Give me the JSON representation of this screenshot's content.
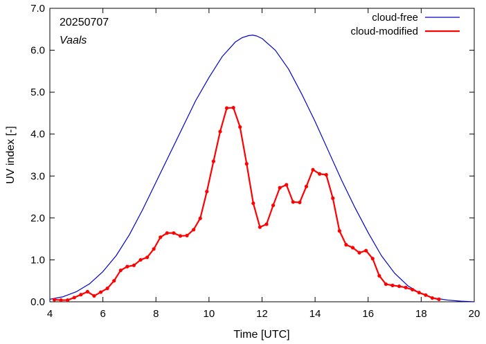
{
  "chart_data": {
    "type": "line",
    "date_label": "20250707",
    "location_label": "Vaals",
    "xlabel": "Time  [UTC]",
    "ylabel": "UV index  [-]",
    "xlim": [
      4,
      20
    ],
    "ylim": [
      0,
      7
    ],
    "x_ticks": [
      4,
      6,
      8,
      10,
      12,
      14,
      16,
      18,
      20
    ],
    "x_tick_labels": [
      "4",
      "6",
      "8",
      "10",
      "12",
      "14",
      "16",
      "18",
      "20"
    ],
    "y_ticks": [
      0,
      1,
      2,
      3,
      4,
      5,
      6,
      7
    ],
    "y_tick_labels": [
      "0.0",
      "1.0",
      "2.0",
      "3.0",
      "4.0",
      "5.0",
      "6.0",
      "7.0"
    ],
    "legend_position": "top-right",
    "grid": false,
    "series": [
      {
        "name": "cloud-free",
        "color": "#0000cc",
        "markers": false,
        "x": [
          4.0,
          4.5,
          5.0,
          5.5,
          6.0,
          6.5,
          7.0,
          7.5,
          8.0,
          8.5,
          9.0,
          9.5,
          10.0,
          10.5,
          11.0,
          11.25,
          11.5,
          11.65,
          11.8,
          12.0,
          12.5,
          13.0,
          13.5,
          14.0,
          14.5,
          15.0,
          15.5,
          16.0,
          16.5,
          17.0,
          17.5,
          18.0,
          18.5,
          19.0,
          19.5,
          20.0
        ],
        "y": [
          0.06,
          0.12,
          0.24,
          0.43,
          0.72,
          1.1,
          1.6,
          2.2,
          2.85,
          3.5,
          4.15,
          4.8,
          5.35,
          5.85,
          6.2,
          6.3,
          6.35,
          6.36,
          6.34,
          6.28,
          6.0,
          5.55,
          4.95,
          4.3,
          3.6,
          2.9,
          2.25,
          1.65,
          1.1,
          0.68,
          0.38,
          0.19,
          0.09,
          0.04,
          0.015,
          0.0
        ]
      },
      {
        "name": "cloud-modified",
        "color": "#ff0000",
        "markers": true,
        "x": [
          4.17,
          4.42,
          4.67,
          4.92,
          5.17,
          5.42,
          5.67,
          5.92,
          6.17,
          6.42,
          6.67,
          6.92,
          7.17,
          7.42,
          7.67,
          7.92,
          8.17,
          8.42,
          8.67,
          8.92,
          9.17,
          9.42,
          9.67,
          9.92,
          10.17,
          10.42,
          10.67,
          10.92,
          11.17,
          11.42,
          11.67,
          11.92,
          12.17,
          12.42,
          12.67,
          12.92,
          13.17,
          13.42,
          13.67,
          13.92,
          14.17,
          14.42,
          14.67,
          14.92,
          15.17,
          15.42,
          15.67,
          15.92,
          16.17,
          16.42,
          16.67,
          16.92,
          17.17,
          17.42,
          17.67,
          17.92,
          18.17,
          18.42,
          18.67
        ],
        "y": [
          0.05,
          0.04,
          0.04,
          0.1,
          0.17,
          0.24,
          0.14,
          0.23,
          0.32,
          0.5,
          0.75,
          0.84,
          0.87,
          1.0,
          1.06,
          1.26,
          1.54,
          1.64,
          1.64,
          1.57,
          1.58,
          1.72,
          1.99,
          2.63,
          3.35,
          4.06,
          4.62,
          4.63,
          4.17,
          3.29,
          2.35,
          1.78,
          1.85,
          2.3,
          2.72,
          2.79,
          2.38,
          2.37,
          2.75,
          3.15,
          3.05,
          3.03,
          2.47,
          1.69,
          1.36,
          1.29,
          1.17,
          1.22,
          1.03,
          0.62,
          0.42,
          0.39,
          0.37,
          0.34,
          0.29,
          0.22,
          0.16,
          0.09,
          0.06
        ]
      }
    ]
  }
}
